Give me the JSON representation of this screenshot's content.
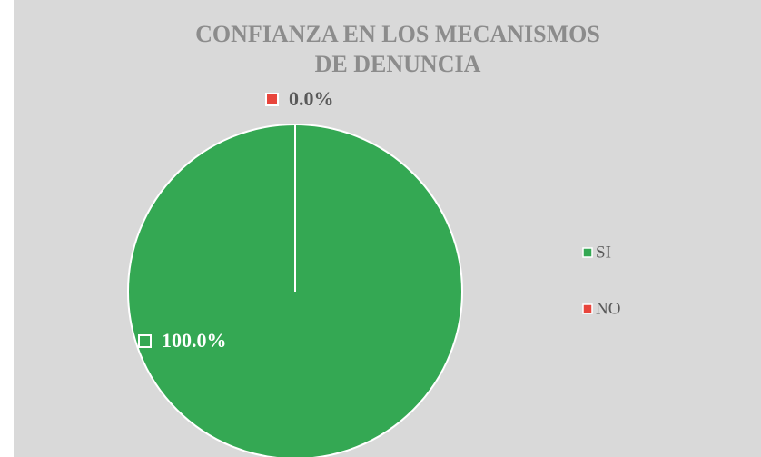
{
  "chart_data": {
    "type": "pie",
    "title": [
      "CONFIANZA EN LOS MECANISMOS",
      "DE  DENUNCIA"
    ],
    "categories": [
      "SI",
      "NO"
    ],
    "values": [
      100,
      0
    ],
    "value_labels": [
      "100.0%",
      "0.0%"
    ],
    "colors": [
      "#34a853",
      "#e8453c"
    ],
    "legend": "right"
  }
}
